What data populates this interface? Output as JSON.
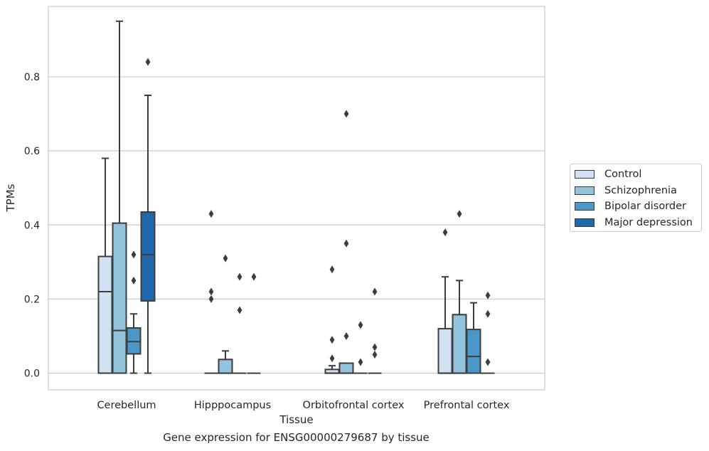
{
  "caption": "Gene expression for ENSG00000279687 by tissue",
  "chart_data": {
    "type": "box",
    "xlabel": "Tissue",
    "ylabel": "TPMs",
    "ylim": [
      -0.045,
      0.99
    ],
    "yticks": [
      0.0,
      0.2,
      0.4,
      0.6,
      0.8
    ],
    "ytick_labels": [
      "0.0",
      "0.2",
      "0.4",
      "0.6",
      "0.8"
    ],
    "grid": "horizontal",
    "legend_placement": "right-outside",
    "categories": [
      "Cerebellum",
      "Hipppocampus",
      "Orbitofrontal cortex",
      "Prefrontal cortex"
    ],
    "series": [
      {
        "name": "Control",
        "color": "#cfe1f2",
        "boxes": [
          {
            "min": 0.0,
            "q1": 0.0,
            "median": 0.22,
            "q3": 0.315,
            "max": 0.58,
            "outliers": []
          },
          {
            "min": 0.0,
            "q1": 0.0,
            "median": 0.0,
            "q3": 0.0,
            "max": 0.0,
            "outliers": [
              0.43,
              0.22,
              0.2
            ]
          },
          {
            "min": 0.0,
            "q1": 0.0,
            "median": 0.0,
            "q3": 0.01,
            "max": 0.02,
            "outliers": [
              0.28,
              0.09,
              0.04
            ]
          },
          {
            "min": 0.0,
            "q1": 0.0,
            "median": 0.0,
            "q3": 0.12,
            "max": 0.26,
            "outliers": [
              0.38
            ]
          }
        ]
      },
      {
        "name": "Schizophrenia",
        "color": "#93c4de",
        "boxes": [
          {
            "min": 0.0,
            "q1": 0.0,
            "median": 0.115,
            "q3": 0.405,
            "max": 0.95,
            "outliers": []
          },
          {
            "min": 0.0,
            "q1": 0.0,
            "median": 0.0,
            "q3": 0.037,
            "max": 0.06,
            "outliers": [
              0.31
            ]
          },
          {
            "min": 0.0,
            "q1": 0.0,
            "median": 0.0,
            "q3": 0.027,
            "max": 0.027,
            "outliers": [
              0.7,
              0.35,
              0.1
            ]
          },
          {
            "min": 0.0,
            "q1": 0.0,
            "median": 0.0,
            "q3": 0.158,
            "max": 0.25,
            "outliers": [
              0.43
            ]
          }
        ]
      },
      {
        "name": "Bipolar disorder",
        "color": "#4a98c9",
        "boxes": [
          {
            "min": 0.0,
            "q1": 0.052,
            "median": 0.085,
            "q3": 0.122,
            "max": 0.16,
            "outliers": [
              0.32,
              0.25
            ]
          },
          {
            "min": 0.0,
            "q1": 0.0,
            "median": 0.0,
            "q3": 0.0,
            "max": 0.0,
            "outliers": [
              0.26,
              0.17
            ]
          },
          {
            "min": 0.0,
            "q1": 0.0,
            "median": 0.0,
            "q3": 0.0,
            "max": 0.0,
            "outliers": [
              0.13,
              0.03
            ]
          },
          {
            "min": 0.0,
            "q1": 0.0,
            "median": 0.045,
            "q3": 0.118,
            "max": 0.19,
            "outliers": []
          }
        ]
      },
      {
        "name": "Major depression",
        "color": "#1f66aa",
        "boxes": [
          {
            "min": 0.0,
            "q1": 0.195,
            "median": 0.32,
            "q3": 0.435,
            "max": 0.75,
            "outliers": [
              0.84
            ]
          },
          {
            "min": 0.0,
            "q1": 0.0,
            "median": 0.0,
            "q3": 0.0,
            "max": 0.0,
            "outliers": [
              0.26
            ]
          },
          {
            "min": 0.0,
            "q1": 0.0,
            "median": 0.0,
            "q3": 0.0,
            "max": 0.0,
            "outliers": [
              0.22,
              0.07,
              0.05
            ]
          },
          {
            "min": 0.0,
            "q1": 0.0,
            "median": 0.0,
            "q3": 0.0,
            "max": 0.0,
            "outliers": [
              0.21,
              0.16,
              0.03
            ]
          }
        ]
      }
    ]
  }
}
